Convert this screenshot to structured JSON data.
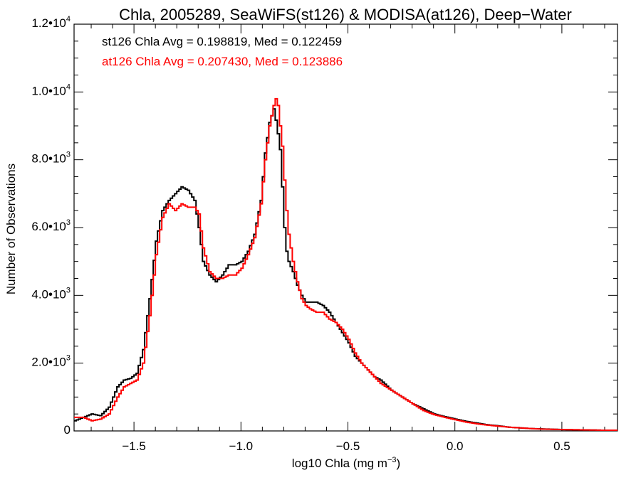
{
  "chart_data": {
    "type": "line",
    "title": "Chla, 2005289, SeaWiFS(st126) & MODISA(at126), Deep−Water",
    "xlabel": "log10 Chla (mg m",
    "xlabel_sup": "−3",
    "xlabel_suffix": ")",
    "ylabel": "Number of Observations",
    "xlim": [
      -1.78,
      0.76
    ],
    "ylim": [
      0,
      12000
    ],
    "grid": false,
    "x_ticks": [
      {
        "value": -1.5,
        "label": "−1.5"
      },
      {
        "value": -1.0,
        "label": "−1.0"
      },
      {
        "value": -0.5,
        "label": "−0.5"
      },
      {
        "value": 0.0,
        "label": "0.0"
      },
      {
        "value": 0.5,
        "label": "0.5"
      }
    ],
    "y_ticks": [
      {
        "value": 0,
        "mant": "0",
        "exp": ""
      },
      {
        "value": 2000,
        "mant": "2.0•10",
        "exp": "3"
      },
      {
        "value": 4000,
        "mant": "4.0•10",
        "exp": "3"
      },
      {
        "value": 6000,
        "mant": "6.0•10",
        "exp": "3"
      },
      {
        "value": 8000,
        "mant": "8.0•10",
        "exp": "3"
      },
      {
        "value": 10000,
        "mant": "1.0•10",
        "exp": "4"
      },
      {
        "value": 12000,
        "mant": "1.2•10",
        "exp": "4"
      }
    ],
    "annotations": [
      {
        "text": "st126 Chla Avg = 0.198819, Med = 0.122459",
        "color": "#000000"
      },
      {
        "text": "at126 Chla Avg = 0.207430, Med = 0.123886",
        "color": "#ff0000"
      }
    ],
    "series": [
      {
        "color": "#000000",
        "x": [
          -1.78,
          -1.74,
          -1.7,
          -1.66,
          -1.62,
          -1.58,
          -1.55,
          -1.52,
          -1.49,
          -1.46,
          -1.43,
          -1.4,
          -1.37,
          -1.34,
          -1.31,
          -1.28,
          -1.25,
          -1.22,
          -1.2,
          -1.18,
          -1.15,
          -1.12,
          -1.09,
          -1.06,
          -1.03,
          -1.0,
          -0.97,
          -0.94,
          -0.91,
          -0.89,
          -0.87,
          -0.85,
          -0.835,
          -0.82,
          -0.81,
          -0.8,
          -0.79,
          -0.78,
          -0.76,
          -0.74,
          -0.72,
          -0.7,
          -0.68,
          -0.65,
          -0.62,
          -0.59,
          -0.56,
          -0.53,
          -0.5,
          -0.47,
          -0.44,
          -0.41,
          -0.38,
          -0.35,
          -0.3,
          -0.25,
          -0.2,
          -0.15,
          -0.1,
          -0.05,
          0.0,
          0.05,
          0.1,
          0.15,
          0.2,
          0.25,
          0.3,
          0.35,
          0.4,
          0.5,
          0.6,
          0.7,
          0.76
        ],
        "y": [
          300,
          400,
          500,
          450,
          700,
          1300,
          1500,
          1550,
          1700,
          2400,
          3900,
          5600,
          6500,
          6800,
          7000,
          7200,
          7100,
          6800,
          6000,
          5000,
          4600,
          4400,
          4600,
          4900,
          4900,
          5000,
          5300,
          5800,
          6800,
          8200,
          9100,
          9500,
          9000,
          8300,
          7200,
          6000,
          5300,
          5000,
          4700,
          4300,
          4000,
          3800,
          3800,
          3800,
          3700,
          3500,
          3200,
          2900,
          2600,
          2200,
          2000,
          1800,
          1600,
          1500,
          1200,
          1000,
          800,
          650,
          500,
          420,
          350,
          280,
          230,
          180,
          150,
          110,
          90,
          70,
          60,
          40,
          30,
          20,
          20
        ]
      },
      {
        "color": "#ff0000",
        "x": [
          -1.78,
          -1.74,
          -1.7,
          -1.66,
          -1.62,
          -1.58,
          -1.55,
          -1.52,
          -1.49,
          -1.46,
          -1.43,
          -1.4,
          -1.37,
          -1.34,
          -1.31,
          -1.28,
          -1.25,
          -1.22,
          -1.2,
          -1.18,
          -1.15,
          -1.12,
          -1.09,
          -1.06,
          -1.03,
          -1.0,
          -0.97,
          -0.94,
          -0.91,
          -0.89,
          -0.87,
          -0.85,
          -0.835,
          -0.82,
          -0.81,
          -0.8,
          -0.79,
          -0.78,
          -0.76,
          -0.74,
          -0.72,
          -0.7,
          -0.68,
          -0.65,
          -0.62,
          -0.59,
          -0.56,
          -0.53,
          -0.5,
          -0.47,
          -0.44,
          -0.41,
          -0.38,
          -0.35,
          -0.3,
          -0.25,
          -0.2,
          -0.15,
          -0.1,
          -0.05,
          0.0,
          0.05,
          0.1,
          0.15,
          0.2,
          0.25,
          0.3,
          0.35,
          0.4,
          0.5,
          0.6,
          0.7,
          0.76
        ],
        "y": [
          400,
          400,
          300,
          350,
          500,
          1000,
          1300,
          1400,
          1500,
          2000,
          3400,
          5200,
          6300,
          6700,
          6500,
          6700,
          6600,
          6600,
          6400,
          5400,
          4700,
          4500,
          4500,
          4600,
          4600,
          4800,
          5200,
          5700,
          6700,
          8000,
          9000,
          9600,
          9900,
          9000,
          8400,
          7400,
          6500,
          5800,
          5000,
          4400,
          3900,
          3700,
          3600,
          3500,
          3500,
          3300,
          3200,
          3000,
          2700,
          2300,
          2000,
          1800,
          1600,
          1400,
          1200,
          1000,
          800,
          600,
          480,
          400,
          330,
          260,
          210,
          170,
          140,
          110,
          90,
          70,
          55,
          40,
          30,
          20,
          20
        ]
      }
    ]
  }
}
